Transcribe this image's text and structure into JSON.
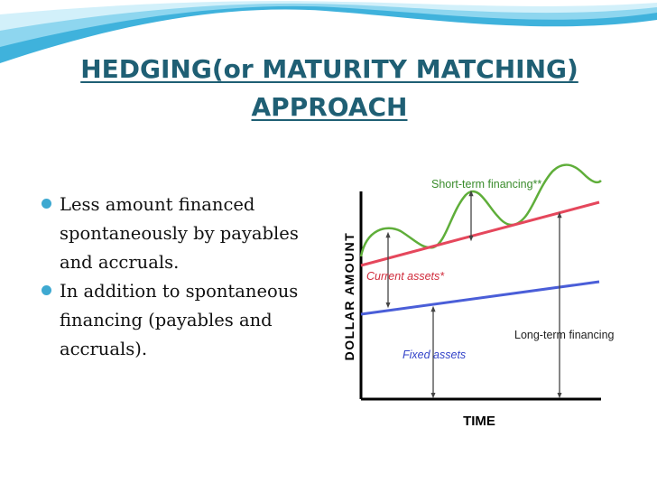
{
  "slide": {
    "title_line1": "HEDGING(or MATURITY MATCHING)",
    "title_line2": "APPROACH",
    "bullets": [
      "Less amount financed spontaneously by payables and accruals.",
      "In addition to spontaneous financing (payables and accruals)."
    ]
  },
  "diagram": {
    "y_axis_label": "DOLLAR AMOUNT",
    "x_axis_label": "TIME",
    "labels": {
      "short_term": "Short-term financing**",
      "current_assets": "Current assets*",
      "fixed_assets": "Fixed assets",
      "long_term": "Long-term financing"
    },
    "colors": {
      "green_curve": "#5fae3a",
      "red_line": "#e5475c",
      "blue_line": "#4a5ed8",
      "label_green": "#3a8c2c",
      "label_red": "#d02c3c",
      "label_blue": "#3343c8",
      "title": "#1f5f74",
      "bullet": "#3ea9d1"
    }
  }
}
